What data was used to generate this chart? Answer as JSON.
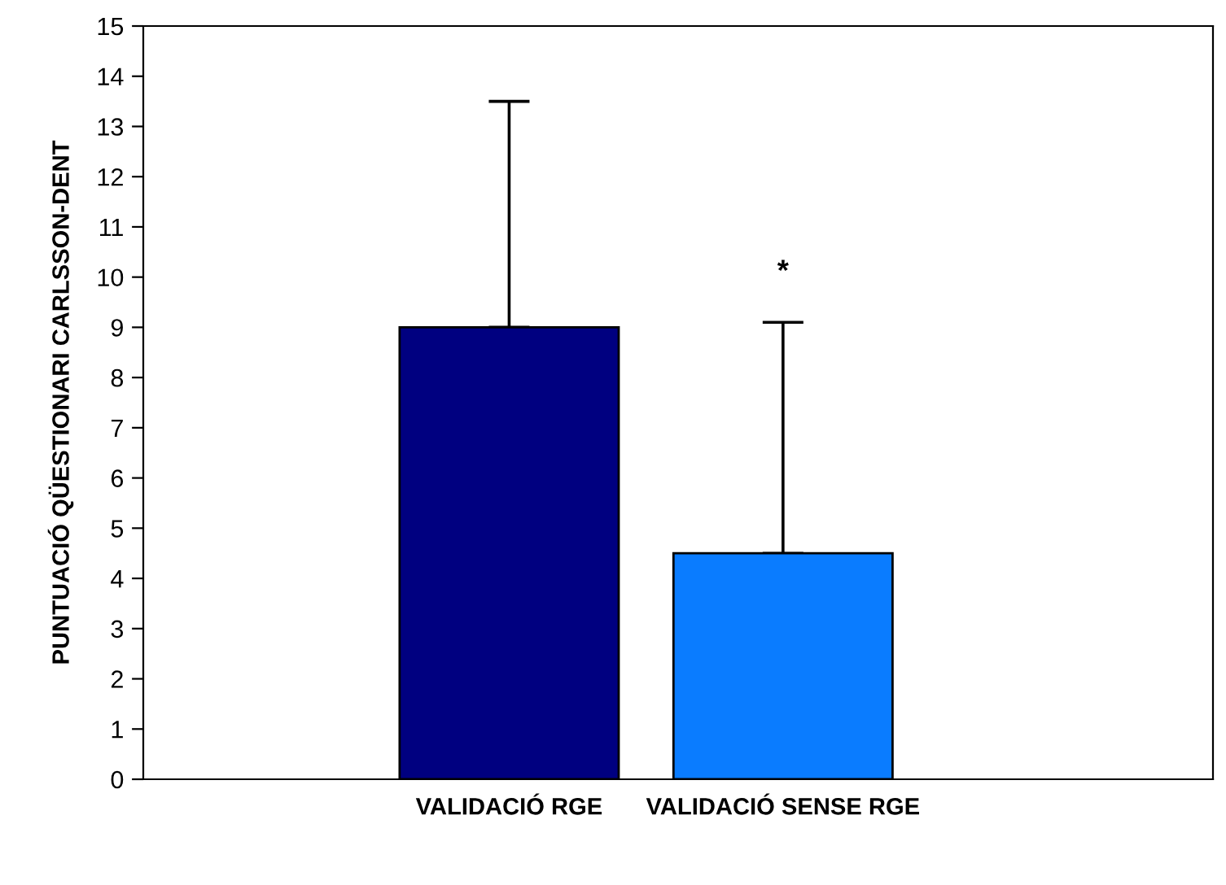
{
  "chart_data": {
    "type": "bar",
    "ylabel": "PUNTUACIÓ QÜESTIONARI CARLSSON-DENT",
    "categories": [
      "VALIDACIÓ RGE",
      "VALIDACIÓ SENSE RGE"
    ],
    "values": [
      9,
      4.5
    ],
    "colors": [
      "#000080",
      "#0a7cff"
    ],
    "errors": [
      [
        9,
        13.5
      ],
      [
        4.5,
        9.1
      ]
    ],
    "ylim": [
      0,
      15
    ],
    "yticks": [
      0,
      1,
      2,
      3,
      4,
      5,
      6,
      7,
      8,
      9,
      10,
      11,
      12,
      13,
      14,
      15
    ],
    "annotations": [
      "*"
    ],
    "grid": false,
    "legend": false
  }
}
